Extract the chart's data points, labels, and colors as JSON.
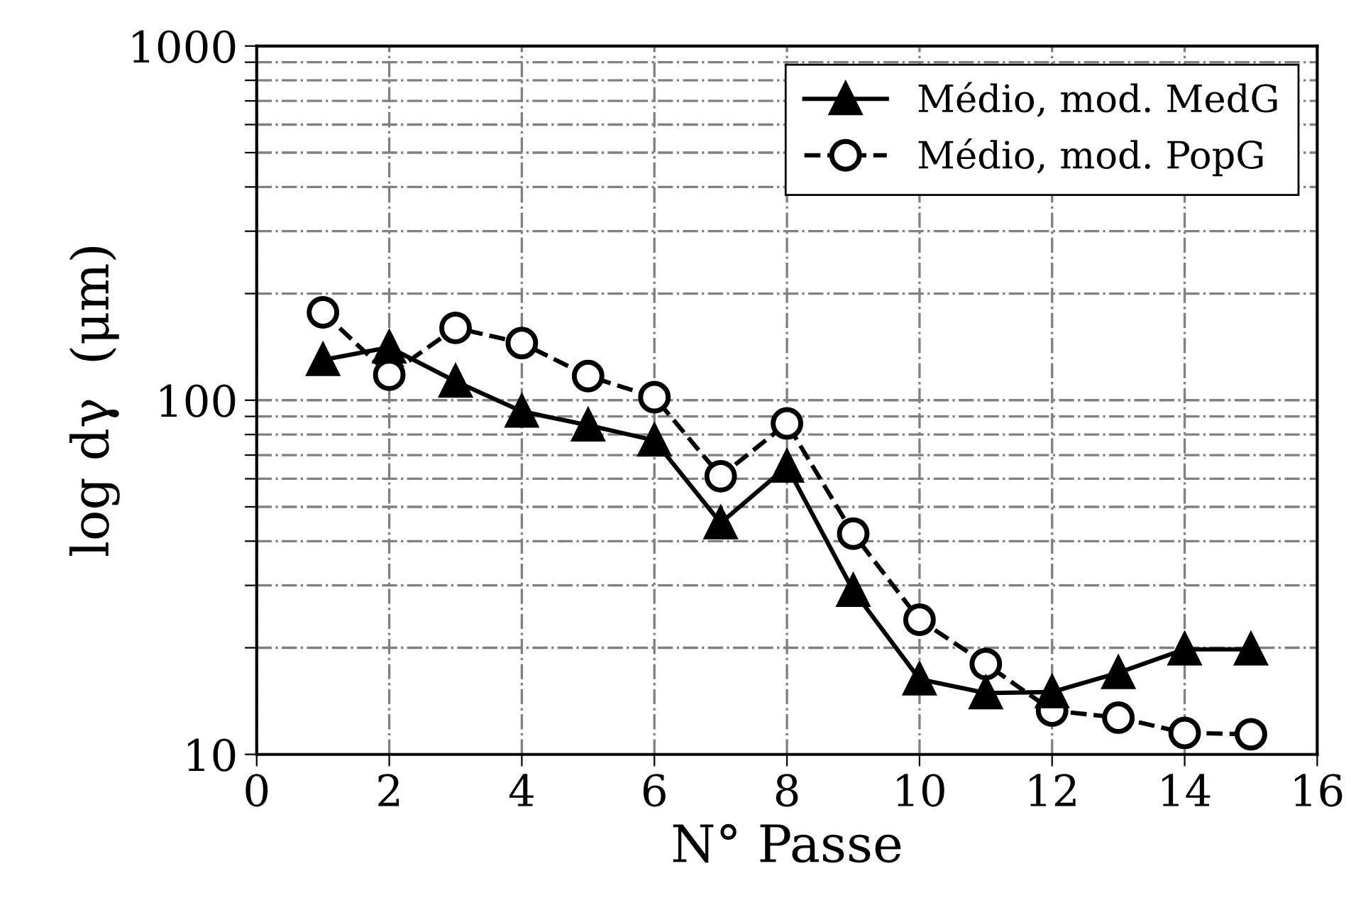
{
  "chart_data": {
    "type": "line",
    "xlabel": "N° Passe",
    "ylabel": "log dγ  (μm)",
    "log": "y",
    "grid": true,
    "legend": "top right",
    "x": [
      1,
      2,
      3,
      4,
      5,
      6,
      7,
      8,
      9,
      10,
      11,
      12,
      13,
      14,
      15
    ],
    "xlim": [
      0,
      16
    ],
    "xticks": [
      0,
      2,
      4,
      6,
      8,
      10,
      12,
      14,
      16
    ],
    "ylim": [
      10,
      1000
    ],
    "yticks": [
      10,
      {
        "value": 20,
        "label": null
      },
      {
        "value": 30,
        "label": null
      },
      {
        "value": 40,
        "label": null
      },
      {
        "value": 50,
        "label": null
      },
      {
        "value": 60,
        "label": null
      },
      {
        "value": 70,
        "label": null
      },
      {
        "value": 80,
        "label": null
      },
      {
        "value": 90,
        "label": null
      },
      100,
      {
        "value": 200,
        "label": null
      },
      {
        "value": 300,
        "label": null
      },
      {
        "value": 400,
        "label": null
      },
      {
        "value": 500,
        "label": null
      },
      {
        "value": 600,
        "label": null
      },
      {
        "value": 700,
        "label": null
      },
      {
        "value": 800,
        "label": null
      },
      {
        "value": 900,
        "label": null
      },
      1000
    ],
    "series": [
      {
        "name": "Médio, mod. MedG",
        "color": "#000000",
        "marker": "triangle",
        "line_style": "solid",
        "values": [
          130,
          141,
          113,
          93,
          85,
          77,
          45,
          65,
          29,
          16.3,
          14.9,
          15,
          17,
          19.8,
          19.8
        ]
      },
      {
        "name": "Médio, mod. PopG",
        "color": "#000000",
        "marker": "circle",
        "line_style": "dashed",
        "values": [
          177,
          118,
          160,
          145,
          117,
          102,
          61,
          86,
          42,
          24,
          18,
          13.3,
          12.7,
          11.5,
          11.4
        ]
      }
    ]
  }
}
